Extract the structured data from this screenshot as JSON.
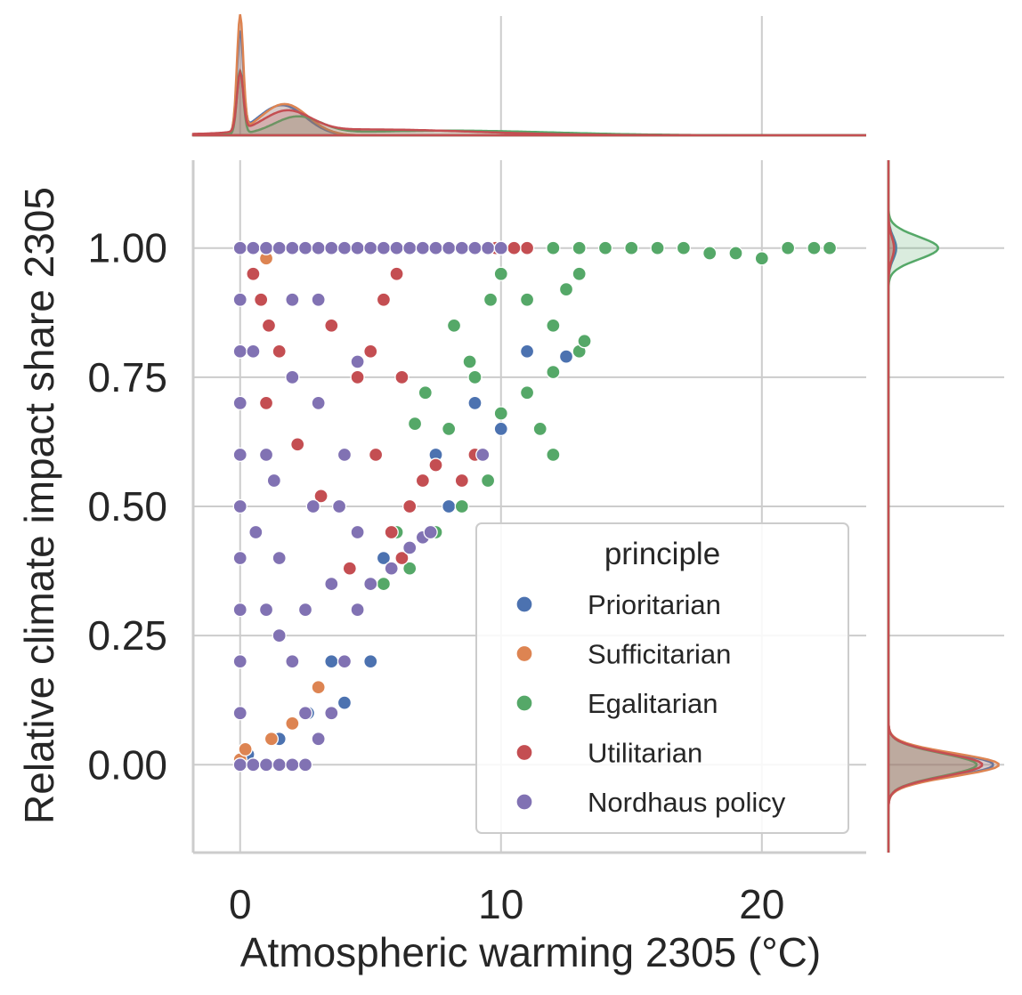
{
  "chart_data": {
    "type": "scatter",
    "kind": "jointplot",
    "xlabel": "Atmospheric warming 2305 (°C)",
    "ylabel": "Relative climate impact share 2305",
    "xlim": [
      -1.8,
      24
    ],
    "ylim": [
      -0.17,
      1.17
    ],
    "xticks": [
      0,
      10,
      20
    ],
    "xtick_labels": [
      "0",
      "10",
      "20"
    ],
    "yticks": [
      0.0,
      0.25,
      0.5,
      0.75,
      1.0
    ],
    "ytick_labels": [
      "0.00",
      "0.25",
      "0.50",
      "0.75",
      "1.00"
    ],
    "grid": true,
    "legend": {
      "title": "principle",
      "placement": "lower right"
    },
    "series": [
      {
        "name": "Prioritarian",
        "color": "#4c72b0",
        "points": [
          [
            2.6,
            0.1
          ],
          [
            3.5,
            0.2
          ],
          [
            4.5,
            0.3
          ],
          [
            5.5,
            0.4
          ],
          [
            6.5,
            0.5
          ],
          [
            7.5,
            0.6
          ],
          [
            9,
            0.7
          ],
          [
            11,
            0.8
          ],
          [
            12.5,
            0.79
          ],
          [
            0.3,
            0.02
          ],
          [
            1.5,
            0.05
          ],
          [
            4,
            0.12
          ],
          [
            5,
            0.2
          ],
          [
            8,
            0.5
          ],
          [
            10,
            0.65
          ]
        ],
        "marginal_x_peaks": [
          [
            0.0,
            0.85
          ],
          [
            1.6,
            0.26
          ]
        ],
        "marginal_y_peaks": [
          [
            0.0,
            0.95
          ],
          [
            1.0,
            0.07
          ]
        ]
      },
      {
        "name": "Sufficitarian",
        "color": "#dd8452",
        "points": [
          [
            0,
            0.01
          ],
          [
            0.2,
            0.03
          ],
          [
            1.2,
            0.05
          ],
          [
            2,
            0.08
          ],
          [
            3,
            0.15
          ],
          [
            1,
            0.98
          ]
        ],
        "marginal_x_peaks": [
          [
            0.0,
            1.0
          ],
          [
            1.7,
            0.27
          ]
        ],
        "marginal_y_peaks": [
          [
            0.0,
            1.0
          ],
          [
            1.0,
            0.05
          ]
        ]
      },
      {
        "name": "Egalitarian",
        "color": "#55a868",
        "points": [
          [
            10,
            1.0
          ],
          [
            11,
            1.0
          ],
          [
            12,
            1.0
          ],
          [
            13,
            1.0
          ],
          [
            14,
            1.0
          ],
          [
            15,
            1.0
          ],
          [
            16,
            1.0
          ],
          [
            17,
            1.0
          ],
          [
            18,
            0.99
          ],
          [
            19,
            0.99
          ],
          [
            20,
            0.98
          ],
          [
            21,
            1.0
          ],
          [
            22,
            1.0
          ],
          [
            22.6,
            1.0
          ],
          [
            10,
            0.95
          ],
          [
            11,
            0.9
          ],
          [
            12,
            0.85
          ],
          [
            13,
            0.8
          ],
          [
            13.2,
            0.82
          ],
          [
            12.5,
            0.92
          ],
          [
            13,
            0.95
          ],
          [
            9,
            0.75
          ],
          [
            8,
            0.65
          ],
          [
            7,
            0.55
          ],
          [
            6,
            0.45
          ],
          [
            5.5,
            0.35
          ],
          [
            10,
            0.68
          ],
          [
            11,
            0.72
          ],
          [
            12,
            0.76
          ],
          [
            9.5,
            0.55
          ],
          [
            8.5,
            0.5
          ],
          [
            7.5,
            0.45
          ],
          [
            6.5,
            0.38
          ],
          [
            11.5,
            0.65
          ],
          [
            12,
            0.6
          ],
          [
            7.1,
            0.72
          ],
          [
            6.7,
            0.66
          ],
          [
            8.2,
            0.85
          ],
          [
            9.6,
            0.9
          ],
          [
            8.8,
            0.78
          ]
        ],
        "marginal_x_peaks": [
          [
            0.0,
            0.55
          ],
          [
            2.2,
            0.15
          ],
          [
            8.0,
            0.04
          ]
        ],
        "marginal_y_peaks": [
          [
            0.0,
            0.8
          ],
          [
            1.0,
            0.45
          ]
        ]
      },
      {
        "name": "Utilitarian",
        "color": "#c44e52",
        "points": [
          [
            0.5,
            0.95
          ],
          [
            0.8,
            0.9
          ],
          [
            1.1,
            0.85
          ],
          [
            1.5,
            0.8
          ],
          [
            1,
            0.7
          ],
          [
            3.5,
            0.85
          ],
          [
            4.5,
            0.75
          ],
          [
            5,
            0.8
          ],
          [
            5.5,
            0.9
          ],
          [
            6,
            0.95
          ],
          [
            5.8,
            0.45
          ],
          [
            6.2,
            0.4
          ],
          [
            6.5,
            0.5
          ],
          [
            7,
            0.55
          ],
          [
            7.5,
            0.58
          ],
          [
            8.5,
            0.55
          ],
          [
            9,
            0.6
          ],
          [
            6.2,
            0.75
          ],
          [
            11,
            1.0
          ],
          [
            10.5,
            1.0
          ],
          [
            9.8,
            1.0
          ],
          [
            2.2,
            0.62
          ],
          [
            3.1,
            0.52
          ],
          [
            4.2,
            0.38
          ],
          [
            5.2,
            0.6
          ]
        ],
        "marginal_x_peaks": [
          [
            0.0,
            0.5
          ],
          [
            1.8,
            0.18
          ],
          [
            5.0,
            0.05
          ]
        ],
        "marginal_y_peaks": [
          [
            0.0,
            0.85
          ],
          [
            1.0,
            0.05
          ]
        ]
      },
      {
        "name": "Nordhaus policy",
        "color": "#8172b3",
        "points": [
          [
            0,
            1.0
          ],
          [
            0.5,
            1.0
          ],
          [
            1,
            1.0
          ],
          [
            1.5,
            1.0
          ],
          [
            2,
            1.0
          ],
          [
            2.5,
            1.0
          ],
          [
            3,
            1.0
          ],
          [
            3.5,
            1.0
          ],
          [
            4,
            1.0
          ],
          [
            4.5,
            1.0
          ],
          [
            5,
            1.0
          ],
          [
            5.5,
            1.0
          ],
          [
            6,
            1.0
          ],
          [
            6.5,
            1.0
          ],
          [
            7,
            1.0
          ],
          [
            7.5,
            1.0
          ],
          [
            8,
            1.0
          ],
          [
            8.5,
            1.0
          ],
          [
            9,
            1.0
          ],
          [
            9.5,
            1.0
          ],
          [
            10,
            1.0
          ],
          [
            0,
            0.9
          ],
          [
            0,
            0.8
          ],
          [
            0,
            0.7
          ],
          [
            0,
            0.6
          ],
          [
            0,
            0.5
          ],
          [
            0,
            0.4
          ],
          [
            0,
            0.3
          ],
          [
            0,
            0.2
          ],
          [
            0,
            0.1
          ],
          [
            0,
            0.0
          ],
          [
            0.5,
            0.0
          ],
          [
            1,
            0.0
          ],
          [
            1.5,
            0.0
          ],
          [
            2,
            0.0
          ],
          [
            2.5,
            0.0
          ],
          [
            0.5,
            0.8
          ],
          [
            1,
            0.6
          ],
          [
            1.5,
            0.4
          ],
          [
            2,
            0.2
          ],
          [
            2.5,
            0.1
          ],
          [
            3,
            0.05
          ],
          [
            3.5,
            0.1
          ],
          [
            4,
            0.2
          ],
          [
            4.5,
            0.3
          ],
          [
            5,
            0.35
          ],
          [
            5.8,
            0.38
          ],
          [
            6.5,
            0.42
          ],
          [
            7,
            0.44
          ],
          [
            7.3,
            0.45
          ],
          [
            9.3,
            0.6
          ],
          [
            2,
            0.9
          ],
          [
            3,
            0.7
          ],
          [
            3.8,
            0.5
          ],
          [
            4.5,
            0.45
          ],
          [
            1,
            0.3
          ],
          [
            1.5,
            0.25
          ],
          [
            2.5,
            0.3
          ],
          [
            3.5,
            0.35
          ],
          [
            4,
            0.6
          ],
          [
            4.5,
            0.78
          ],
          [
            3,
            0.9
          ],
          [
            2,
            0.75
          ],
          [
            1.3,
            0.55
          ],
          [
            0.6,
            0.45
          ],
          [
            2.8,
            0.5
          ]
        ]
      }
    ]
  }
}
